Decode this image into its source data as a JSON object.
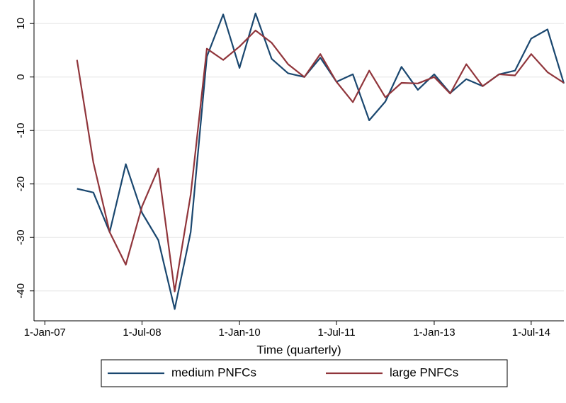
{
  "chart_data": {
    "type": "line",
    "x_title": "Time (quarterly)",
    "x": [
      "2007-07-01",
      "2007-10-01",
      "2008-01-01",
      "2008-04-01",
      "2008-07-01",
      "2008-10-01",
      "2009-01-01",
      "2009-04-01",
      "2009-07-01",
      "2009-10-01",
      "2010-01-01",
      "2010-04-01",
      "2010-07-01",
      "2010-10-01",
      "2011-01-01",
      "2011-04-01",
      "2011-07-01",
      "2011-10-01",
      "2012-01-01",
      "2012-04-01",
      "2012-07-01",
      "2012-10-01",
      "2013-01-01",
      "2013-04-01",
      "2013-07-01",
      "2013-10-01",
      "2014-01-01",
      "2014-04-01",
      "2014-07-01",
      "2014-10-01",
      "2015-01-01"
    ],
    "series": [
      {
        "name": "medium PNFCs",
        "color": "#1a476f",
        "values": [
          -20.9,
          -21.6,
          -29,
          -16.3,
          -25.4,
          -30.5,
          -43.4,
          -29,
          3.8,
          11.7,
          1.7,
          11.9,
          3.4,
          0.7,
          0,
          3.6,
          -0.9,
          0.5,
          -8.1,
          -4.6,
          1.9,
          -2.4,
          0.5,
          -3,
          -0.4,
          -1.7,
          0.5,
          1.2,
          7.2,
          8.9,
          -1.2
        ]
      },
      {
        "name": "large PNFCs",
        "color": "#90353b",
        "values": [
          3.2,
          -16,
          -29,
          -35.1,
          -24.2,
          -17.1,
          -40.1,
          -22,
          5.3,
          3.2,
          5.7,
          8.7,
          6.4,
          2.4,
          0,
          4.3,
          -0.9,
          -4.7,
          1.2,
          -3.8,
          -1.1,
          -1.2,
          0,
          -3.1,
          2.4,
          -1.7,
          0.5,
          0.3,
          4.3,
          0.9,
          -1.1
        ]
      }
    ],
    "xlim": [
      "2006-11-01",
      "2015-01-01"
    ],
    "xticks": [
      {
        "value": "2007-01-01",
        "label": "1-Jan-07"
      },
      {
        "value": "2008-07-01",
        "label": "1-Jul-08"
      },
      {
        "value": "2010-01-01",
        "label": "1-Jan-10"
      },
      {
        "value": "2011-07-01",
        "label": "1-Jul-11"
      },
      {
        "value": "2013-01-01",
        "label": "1-Jan-13"
      },
      {
        "value": "2014-07-01",
        "label": "1-Jul-14"
      }
    ],
    "ylim": [
      -45.6,
      14.4
    ],
    "yticks": [
      -40,
      -30,
      -20,
      -10,
      0,
      10
    ],
    "grid": true,
    "legend": "bottom"
  }
}
